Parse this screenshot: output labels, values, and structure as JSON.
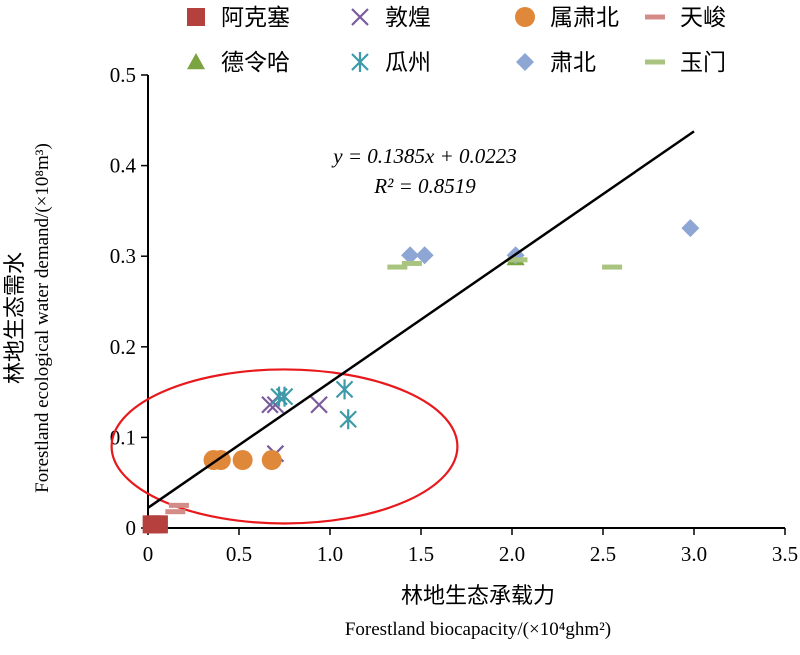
{
  "chart_data": {
    "type": "scatter",
    "xlabel_cn": "林地生态承载力",
    "xlabel_en": "Forestland biocapacity/(×10⁴ghm²)",
    "ylabel_cn": "林地生态需水",
    "ylabel_en": "Forestland ecological water demand/(×10⁸m³)",
    "xlim": [
      0,
      3.5
    ],
    "ylim": [
      0,
      0.5
    ],
    "x_ticks": [
      "0",
      "0.5",
      "1.0",
      "1.5",
      "2.0",
      "2.5",
      "3.0",
      "3.5"
    ],
    "y_ticks": [
      "0",
      "0.1",
      "0.2",
      "0.3",
      "0.4",
      "0.5"
    ],
    "grid": false,
    "legend_position": "top",
    "trendline": {
      "slope": 0.1385,
      "intercept": 0.0223,
      "x_range": [
        0,
        3.0
      ],
      "equation": "y = 0.1385x + 0.0223",
      "r2": "R² = 0.8519"
    },
    "highlight_ellipse": {
      "cx": 0.75,
      "cy": 0.09,
      "rx": 0.95,
      "ry": 0.085,
      "color": "#e8191c"
    },
    "series": [
      {
        "name": "阿克塞",
        "marker": "square",
        "color": "#b5413e",
        "points": [
          [
            0.02,
            0.004
          ],
          [
            0.04,
            0.004
          ],
          [
            0.06,
            0.004
          ]
        ]
      },
      {
        "name": "德令哈",
        "marker": "triangle",
        "color": "#7ba340",
        "points": [
          [
            2.02,
            0.298
          ]
        ]
      },
      {
        "name": "敦煌",
        "marker": "x",
        "color": "#7b5b9c",
        "points": [
          [
            0.67,
            0.136
          ],
          [
            0.7,
            0.136
          ],
          [
            0.94,
            0.136
          ],
          [
            0.7,
            0.082
          ]
        ]
      },
      {
        "name": "瓜州",
        "marker": "asterisk",
        "color": "#3d9aa8",
        "points": [
          [
            0.72,
            0.145
          ],
          [
            0.75,
            0.145
          ],
          [
            1.08,
            0.153
          ],
          [
            1.1,
            0.12
          ]
        ]
      },
      {
        "name": "属肃北",
        "marker": "circle",
        "color": "#e0883a",
        "points": [
          [
            0.36,
            0.075
          ],
          [
            0.4,
            0.075
          ],
          [
            0.52,
            0.075
          ],
          [
            0.68,
            0.075
          ]
        ]
      },
      {
        "name": "肃北",
        "marker": "diamond",
        "color": "#8ea6d4",
        "points": [
          [
            1.44,
            0.301
          ],
          [
            1.52,
            0.301
          ],
          [
            2.02,
            0.301
          ],
          [
            2.98,
            0.331
          ]
        ]
      },
      {
        "name": "天峻",
        "marker": "dash",
        "color": "#d48c88",
        "points": [
          [
            0.17,
            0.025
          ],
          [
            0.15,
            0.018
          ]
        ]
      },
      {
        "name": "玉门",
        "marker": "dash",
        "color": "#a9c47f",
        "points": [
          [
            1.37,
            0.288
          ],
          [
            1.45,
            0.292
          ],
          [
            2.03,
            0.296
          ],
          [
            2.55,
            0.288
          ]
        ]
      }
    ]
  }
}
